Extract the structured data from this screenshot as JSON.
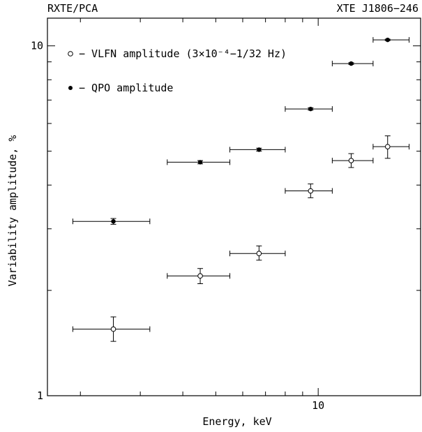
{
  "chart_data": {
    "type": "scatter",
    "title_left": "RXTE/PCA",
    "title_right": "XTE J1806−246",
    "xlabel": "Energy, keV",
    "ylabel": "Variability amplitude, %",
    "x_scale": "log",
    "y_scale": "log",
    "xlim": [
      1.6,
      20
    ],
    "ylim": [
      1,
      12
    ],
    "x_tick_labels": [
      {
        "value": 10,
        "label": "10"
      }
    ],
    "y_tick_labels": [
      {
        "value": 1,
        "label": "1"
      },
      {
        "value": 10,
        "label": "10"
      }
    ],
    "grid": false,
    "legend_position": "top-left",
    "series": [
      {
        "name": "VLFN amplitude (3×10⁻⁴–1/32 Hz)",
        "legend_label": "− VLFN amplitude (3×10⁻⁴−1/32 Hz)",
        "marker": "open-circle",
        "points": [
          {
            "x": 2.5,
            "xlo": 1.9,
            "xhi": 3.2,
            "y": 1.55,
            "ylo": 1.43,
            "yhi": 1.68
          },
          {
            "x": 4.5,
            "xlo": 3.6,
            "xhi": 5.5,
            "y": 2.2,
            "ylo": 2.09,
            "yhi": 2.31
          },
          {
            "x": 6.7,
            "xlo": 5.5,
            "xhi": 8.0,
            "y": 2.55,
            "ylo": 2.44,
            "yhi": 2.68
          },
          {
            "x": 9.5,
            "xlo": 8.0,
            "xhi": 11.0,
            "y": 3.85,
            "ylo": 3.68,
            "yhi": 4.03
          },
          {
            "x": 12.5,
            "xlo": 11.0,
            "xhi": 14.5,
            "y": 4.7,
            "ylo": 4.49,
            "yhi": 4.92
          },
          {
            "x": 16.0,
            "xlo": 14.5,
            "xhi": 18.5,
            "y": 5.15,
            "ylo": 4.77,
            "yhi": 5.53
          }
        ]
      },
      {
        "name": "QPO amplitude",
        "legend_label": "− QPO amplitude",
        "marker": "filled-circle",
        "points": [
          {
            "x": 2.5,
            "xlo": 1.9,
            "xhi": 3.2,
            "y": 3.15,
            "ylo": 3.09,
            "yhi": 3.21
          },
          {
            "x": 4.5,
            "xlo": 3.6,
            "xhi": 5.5,
            "y": 4.65,
            "ylo": 4.6,
            "yhi": 4.7
          },
          {
            "x": 6.7,
            "xlo": 5.5,
            "xhi": 8.0,
            "y": 5.05,
            "ylo": 5.0,
            "yhi": 5.1
          },
          {
            "x": 9.5,
            "xlo": 8.0,
            "xhi": 11.0,
            "y": 6.6,
            "ylo": 6.55,
            "yhi": 6.65
          },
          {
            "x": 12.5,
            "xlo": 11.0,
            "xhi": 14.5,
            "y": 8.9,
            "ylo": 8.85,
            "yhi": 8.95
          },
          {
            "x": 16.0,
            "xlo": 14.5,
            "xhi": 18.5,
            "y": 10.4,
            "ylo": 10.35,
            "yhi": 10.45
          }
        ]
      }
    ]
  }
}
